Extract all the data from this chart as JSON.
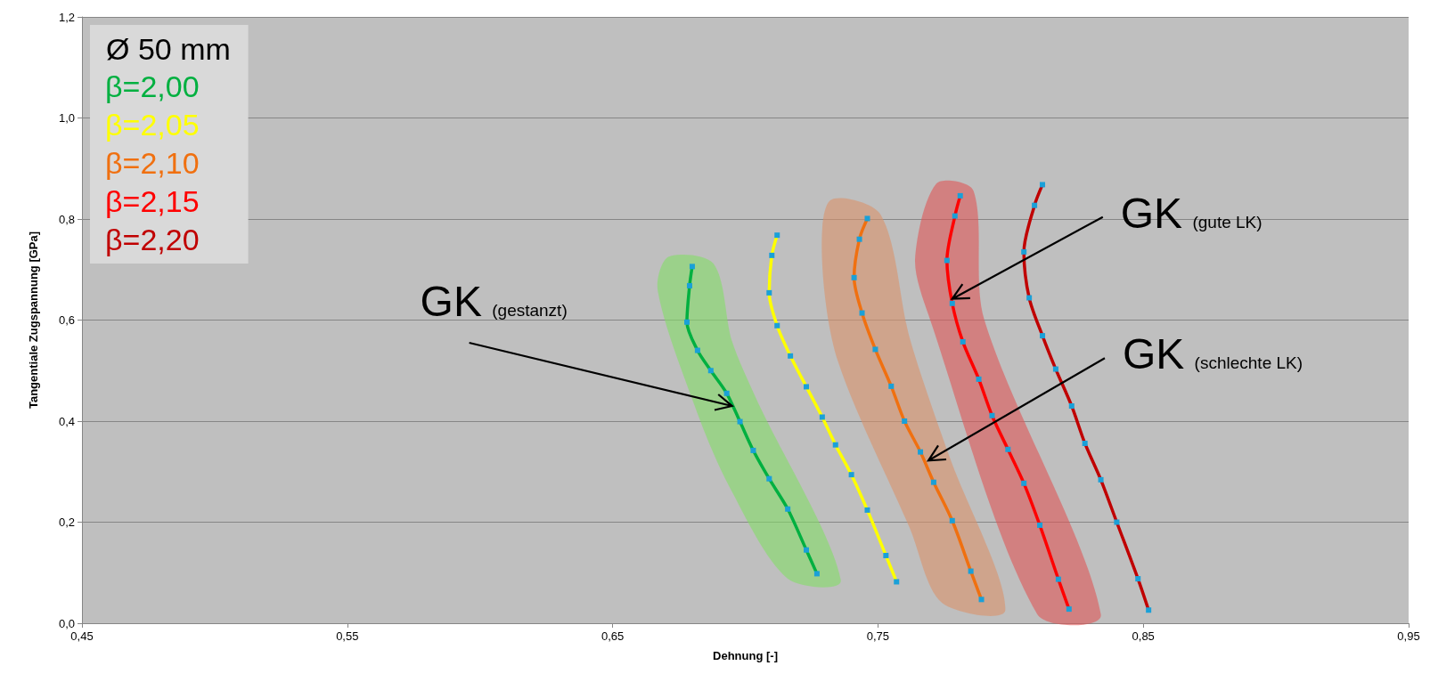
{
  "chart_data": {
    "type": "line",
    "xlabel": "Dehnung [-]",
    "ylabel": "Tangentiale Zugspannung [GPa]",
    "legend_title": "Ø 50 mm",
    "legend": "top left",
    "grid": "y",
    "marker": "square",
    "line_style": "solid",
    "xlim": [
      0.45,
      0.95
    ],
    "xticks": [
      {
        "value": 0.45,
        "label": "0,45"
      },
      {
        "value": 0.55,
        "label": "0,55"
      },
      {
        "value": 0.65,
        "label": "0,65"
      },
      {
        "value": 0.75,
        "label": "0,75"
      },
      {
        "value": 0.85,
        "label": "0,85"
      },
      {
        "value": 0.95,
        "label": "0,95"
      }
    ],
    "ylim": [
      0,
      1.2
    ],
    "yticks": [
      {
        "value": 0,
        "label": "0,0"
      },
      {
        "value": 0.2,
        "label": "0,2"
      },
      {
        "value": 0.4,
        "label": "0,4"
      },
      {
        "value": 0.6,
        "label": "0,6"
      },
      {
        "value": 0.8,
        "label": "0,8"
      },
      {
        "value": 1.0,
        "label": "1,0"
      },
      {
        "value": 1.2,
        "label": "1,2"
      }
    ],
    "series": [
      {
        "type": "area",
        "marker": "none",
        "color": "#83dd68",
        "x": [
          0.671,
          0.688,
          0.695,
          0.704,
          0.736,
          0.716,
          0.694,
          0.681,
          0.667
        ],
        "values": [
          0.725,
          0.712,
          0.558,
          0.446,
          0.085,
          0.088,
          0.27,
          0.429,
          0.658
        ]
      },
      {
        "type": "area",
        "marker": "none",
        "color": "#da926a",
        "x": [
          0.732,
          0.751,
          0.762,
          0.777,
          0.798,
          0.774,
          0.762,
          0.735,
          0.729
        ],
        "values": [
          0.837,
          0.809,
          0.564,
          0.329,
          0.026,
          0.041,
          0.188,
          0.517,
          0.711
        ]
      },
      {
        "type": "area",
        "marker": "none",
        "color": "#df5656",
        "x": [
          0.772,
          0.786,
          0.79,
          0.834,
          0.81,
          0.769,
          0.764
        ],
        "values": [
          0.87,
          0.856,
          0.602,
          0.018,
          0.018,
          0.611,
          0.722
        ]
      },
      {
        "name": "β=2,00",
        "color": "#00b040",
        "x": [
          0.68,
          0.679,
          0.678,
          0.682,
          0.687,
          0.693,
          0.698,
          0.703,
          0.709,
          0.716,
          0.723,
          0.727
        ],
        "values": [
          0.706,
          0.668,
          0.596,
          0.54,
          0.5,
          0.455,
          0.399,
          0.342,
          0.286,
          0.226,
          0.145,
          0.098
        ]
      },
      {
        "name": "β=2,05",
        "color": "#ffff00",
        "x": [
          0.712,
          0.71,
          0.709,
          0.712,
          0.717,
          0.723,
          0.729,
          0.734,
          0.74,
          0.746,
          0.753,
          0.757
        ],
        "values": [
          0.768,
          0.728,
          0.654,
          0.589,
          0.529,
          0.468,
          0.408,
          0.353,
          0.294,
          0.224,
          0.134,
          0.082
        ]
      },
      {
        "name": "β=2,10",
        "color": "#f07010",
        "x": [
          0.746,
          0.743,
          0.741,
          0.744,
          0.749,
          0.755,
          0.76,
          0.766,
          0.771,
          0.778,
          0.785,
          0.789
        ],
        "values": [
          0.801,
          0.76,
          0.684,
          0.614,
          0.542,
          0.469,
          0.4,
          0.339,
          0.279,
          0.203,
          0.103,
          0.047
        ]
      },
      {
        "name": "β=2,15",
        "color": "#ff0000",
        "x": [
          0.781,
          0.779,
          0.776,
          0.778,
          0.782,
          0.788,
          0.793,
          0.799,
          0.805,
          0.811,
          0.818,
          0.822
        ],
        "values": [
          0.846,
          0.806,
          0.718,
          0.633,
          0.557,
          0.483,
          0.411,
          0.344,
          0.277,
          0.194,
          0.087,
          0.028
        ]
      },
      {
        "name": "β=2,20",
        "color": "#c00000",
        "x": [
          0.812,
          0.809,
          0.805,
          0.807,
          0.812,
          0.817,
          0.823,
          0.828,
          0.834,
          0.84,
          0.848,
          0.852
        ],
        "values": [
          0.868,
          0.827,
          0.735,
          0.644,
          0.569,
          0.503,
          0.43,
          0.356,
          0.284,
          0.2,
          0.088,
          0.026
        ]
      }
    ],
    "annotations": [
      {
        "text": "GK (gestanzt)",
        "x": 0.695,
        "y": 0.43
      },
      {
        "text": "GK (gute LK)",
        "x": 0.778,
        "y": 0.642
      },
      {
        "text": "GK (schlechte LK)",
        "x": 0.769,
        "y": 0.322
      }
    ]
  }
}
